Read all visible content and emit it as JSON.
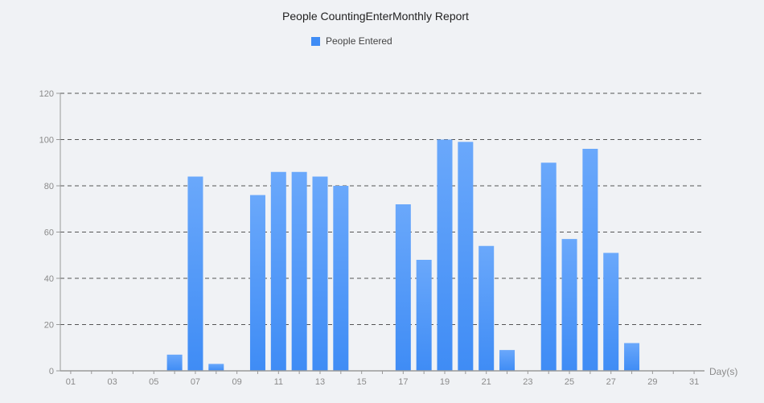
{
  "chart_data": {
    "type": "bar",
    "title": "People CountingEnterMonthly Report",
    "legend": {
      "entries": [
        "People Entered"
      ],
      "placement": "top-center"
    },
    "xlabel": "Day(s)",
    "ylabel": "",
    "categories": [
      "01",
      "02",
      "03",
      "04",
      "05",
      "06",
      "07",
      "08",
      "09",
      "10",
      "11",
      "12",
      "13",
      "14",
      "15",
      "16",
      "17",
      "18",
      "19",
      "20",
      "21",
      "22",
      "23",
      "24",
      "25",
      "26",
      "27",
      "28",
      "29",
      "30",
      "31"
    ],
    "x_tick_labels": [
      "01",
      "03",
      "05",
      "07",
      "09",
      "11",
      "13",
      "15",
      "17",
      "19",
      "21",
      "23",
      "25",
      "27",
      "29",
      "31"
    ],
    "series": [
      {
        "name": "People Entered",
        "color": "#3f8cf5",
        "values": [
          0,
          0,
          0,
          0,
          0,
          7,
          84,
          3,
          0,
          76,
          86,
          86,
          84,
          80,
          0,
          0,
          72,
          48,
          100,
          99,
          54,
          9,
          0,
          90,
          57,
          96,
          51,
          12,
          0,
          0,
          0
        ]
      }
    ],
    "ylim": [
      0,
      120
    ],
    "y_ticks": [
      0,
      20,
      40,
      60,
      80,
      100,
      120
    ],
    "grid": "horizontal-dashed"
  }
}
